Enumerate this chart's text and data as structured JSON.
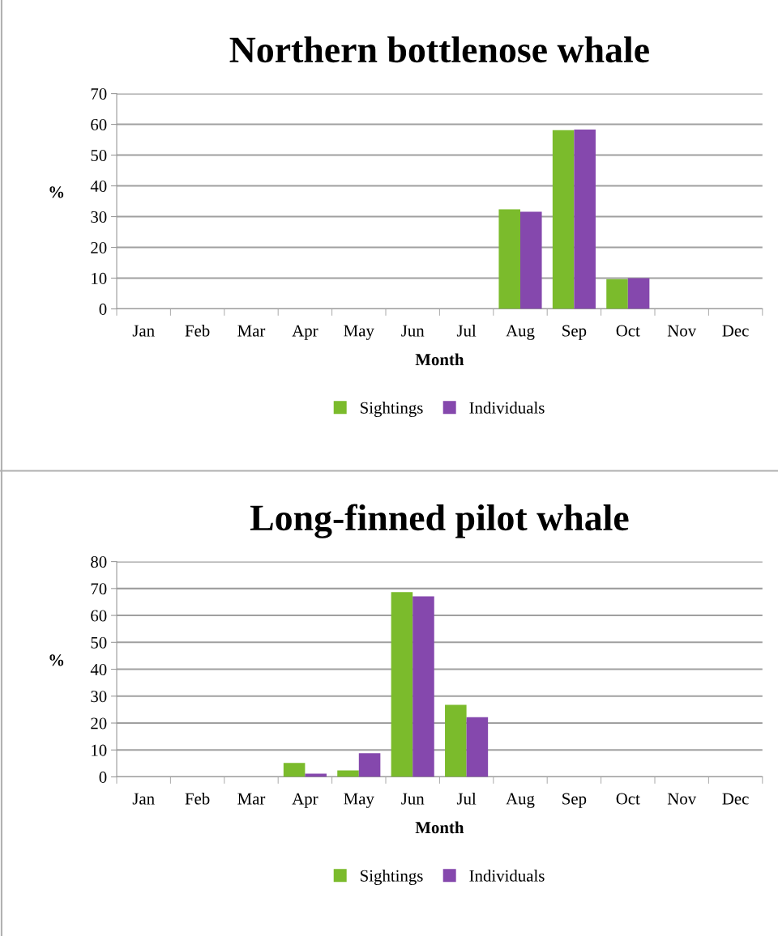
{
  "chart_data": [
    {
      "type": "bar",
      "title": "Northern bottlenose whale",
      "xlabel": "Month",
      "ylabel": "%",
      "categories": [
        "Jan",
        "Feb",
        "Mar",
        "Apr",
        "May",
        "Jun",
        "Jul",
        "Aug",
        "Sep",
        "Oct",
        "Nov",
        "Dec"
      ],
      "series": [
        {
          "name": "Sightings",
          "color": "#7bbb2c",
          "values": [
            0,
            0,
            0,
            0,
            0,
            0,
            0,
            32.4,
            58.1,
            9.7,
            0,
            0
          ]
        },
        {
          "name": "Individuals",
          "color": "#8548ad",
          "values": [
            0,
            0,
            0,
            0,
            0,
            0,
            0,
            31.6,
            58.3,
            10,
            0,
            0
          ]
        }
      ],
      "ylim": [
        0,
        70
      ],
      "yticks": [
        0,
        10,
        20,
        30,
        40,
        50,
        60,
        70
      ],
      "grid": "y",
      "legend": "bottom"
    },
    {
      "type": "bar",
      "title": "Long-finned pilot whale",
      "xlabel": "Month",
      "ylabel": "%",
      "categories": [
        "Jan",
        "Feb",
        "Mar",
        "Apr",
        "May",
        "Jun",
        "Jul",
        "Aug",
        "Sep",
        "Oct",
        "Nov",
        "Dec"
      ],
      "series": [
        {
          "name": "Sightings",
          "color": "#7bbb2c",
          "values": [
            0,
            0,
            0,
            5.2,
            2.4,
            68.7,
            26.8,
            0,
            0,
            0,
            0,
            0
          ]
        },
        {
          "name": "Individuals",
          "color": "#8548ad",
          "values": [
            0,
            0,
            0,
            1.2,
            8.8,
            67.1,
            22.2,
            0,
            0,
            0,
            0,
            0
          ]
        }
      ],
      "ylim": [
        0,
        80
      ],
      "yticks": [
        0,
        10,
        20,
        30,
        40,
        50,
        60,
        70,
        80
      ],
      "grid": "y",
      "legend": "bottom"
    }
  ]
}
